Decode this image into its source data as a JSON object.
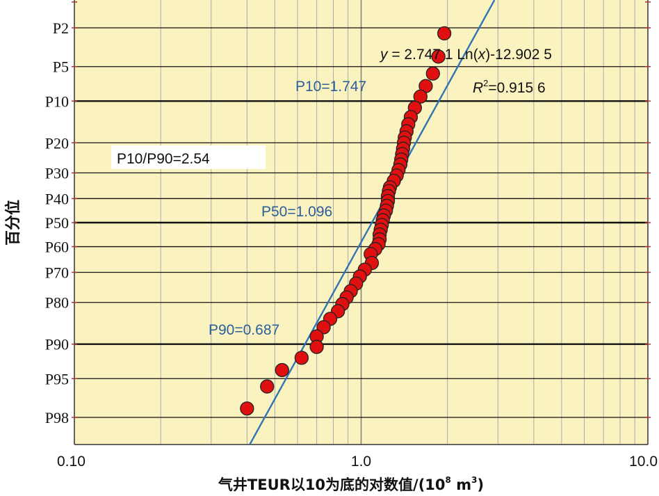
{
  "chart_data": {
    "type": "scatter",
    "x_scale": "log10",
    "xlim": [
      0.1,
      10.0
    ],
    "x_ticks": [
      "0.10",
      "1.0",
      "10.0"
    ],
    "x_tick_values": [
      0.1,
      1.0,
      10.0
    ],
    "xlabel": "气井TEUR以10为底的对数值/(10",
    "xlabel_sup1": "8",
    "xlabel_mid": " m",
    "xlabel_sup2": "3",
    "xlabel_end": ")",
    "ylabel": "百分位",
    "y_scale": "normal-probability",
    "y_ticks": [
      "P2",
      "P5",
      "P10",
      "P20",
      "P30",
      "P40",
      "P50",
      "P60",
      "P70",
      "P80",
      "P90",
      "P95",
      "P98"
    ],
    "y_tick_values": [
      2,
      5,
      10,
      20,
      30,
      40,
      50,
      60,
      70,
      80,
      90,
      95,
      98
    ],
    "ylim": [
      1,
      99
    ],
    "grid": true,
    "background": "#faf3c0",
    "marker_color": "#e01010",
    "line_color": "#2f74b5",
    "fit_line": {
      "equation": "y = 2.747 1 Ln(x)-12.902 5",
      "x_at_P98": 0.461,
      "x_at_P2": 2.58
    },
    "annotations": {
      "eq_y": "y",
      "eq_rest": " = 2.747 1 Ln(",
      "eq_x": "x",
      "eq_tail": ")-12.902 5",
      "r2_r": "R",
      "r2_sup": "2",
      "r2_val": "=0.915 6",
      "p10": "P10=1.747",
      "p50": "P50=1.096",
      "p90": "P90=0.687",
      "ratio": "P10/P90=2.54"
    },
    "points": [
      {
        "x": 1.95,
        "p": 2.3
      },
      {
        "x": 1.86,
        "p": 4.0
      },
      {
        "x": 1.78,
        "p": 5.8
      },
      {
        "x": 1.68,
        "p": 7.5
      },
      {
        "x": 1.61,
        "p": 9.2
      },
      {
        "x": 1.54,
        "p": 11.3
      },
      {
        "x": 1.49,
        "p": 13.3
      },
      {
        "x": 1.46,
        "p": 15.0
      },
      {
        "x": 1.44,
        "p": 16.8
      },
      {
        "x": 1.42,
        "p": 18.5
      },
      {
        "x": 1.41,
        "p": 20.0
      },
      {
        "x": 1.4,
        "p": 21.8
      },
      {
        "x": 1.39,
        "p": 23.5
      },
      {
        "x": 1.38,
        "p": 25.3
      },
      {
        "x": 1.37,
        "p": 27.0
      },
      {
        "x": 1.35,
        "p": 29.0
      },
      {
        "x": 1.33,
        "p": 31.0
      },
      {
        "x": 1.3,
        "p": 33.0
      },
      {
        "x": 1.26,
        "p": 35.5
      },
      {
        "x": 1.25,
        "p": 37.0
      },
      {
        "x": 1.24,
        "p": 39.0
      },
      {
        "x": 1.24,
        "p": 41.0
      },
      {
        "x": 1.23,
        "p": 43.0
      },
      {
        "x": 1.22,
        "p": 45.0
      },
      {
        "x": 1.2,
        "p": 47.0
      },
      {
        "x": 1.19,
        "p": 49.0
      },
      {
        "x": 1.18,
        "p": 51.0
      },
      {
        "x": 1.17,
        "p": 53.0
      },
      {
        "x": 1.16,
        "p": 55.0
      },
      {
        "x": 1.16,
        "p": 57.0
      },
      {
        "x": 1.15,
        "p": 59.0
      },
      {
        "x": 1.12,
        "p": 61.0
      },
      {
        "x": 1.08,
        "p": 63.0
      },
      {
        "x": 1.09,
        "p": 66.5
      },
      {
        "x": 1.03,
        "p": 69.0
      },
      {
        "x": 0.99,
        "p": 71.5
      },
      {
        "x": 0.96,
        "p": 74.0
      },
      {
        "x": 0.92,
        "p": 76.5
      },
      {
        "x": 0.89,
        "p": 78.5
      },
      {
        "x": 0.86,
        "p": 80.5
      },
      {
        "x": 0.83,
        "p": 82.5
      },
      {
        "x": 0.78,
        "p": 84.5
      },
      {
        "x": 0.74,
        "p": 86.5
      },
      {
        "x": 0.7,
        "p": 88.5
      },
      {
        "x": 0.7,
        "p": 90.5
      },
      {
        "x": 0.62,
        "p": 92.3
      },
      {
        "x": 0.53,
        "p": 94.0
      },
      {
        "x": 0.47,
        "p": 95.8
      },
      {
        "x": 0.4,
        "p": 97.5
      }
    ]
  }
}
